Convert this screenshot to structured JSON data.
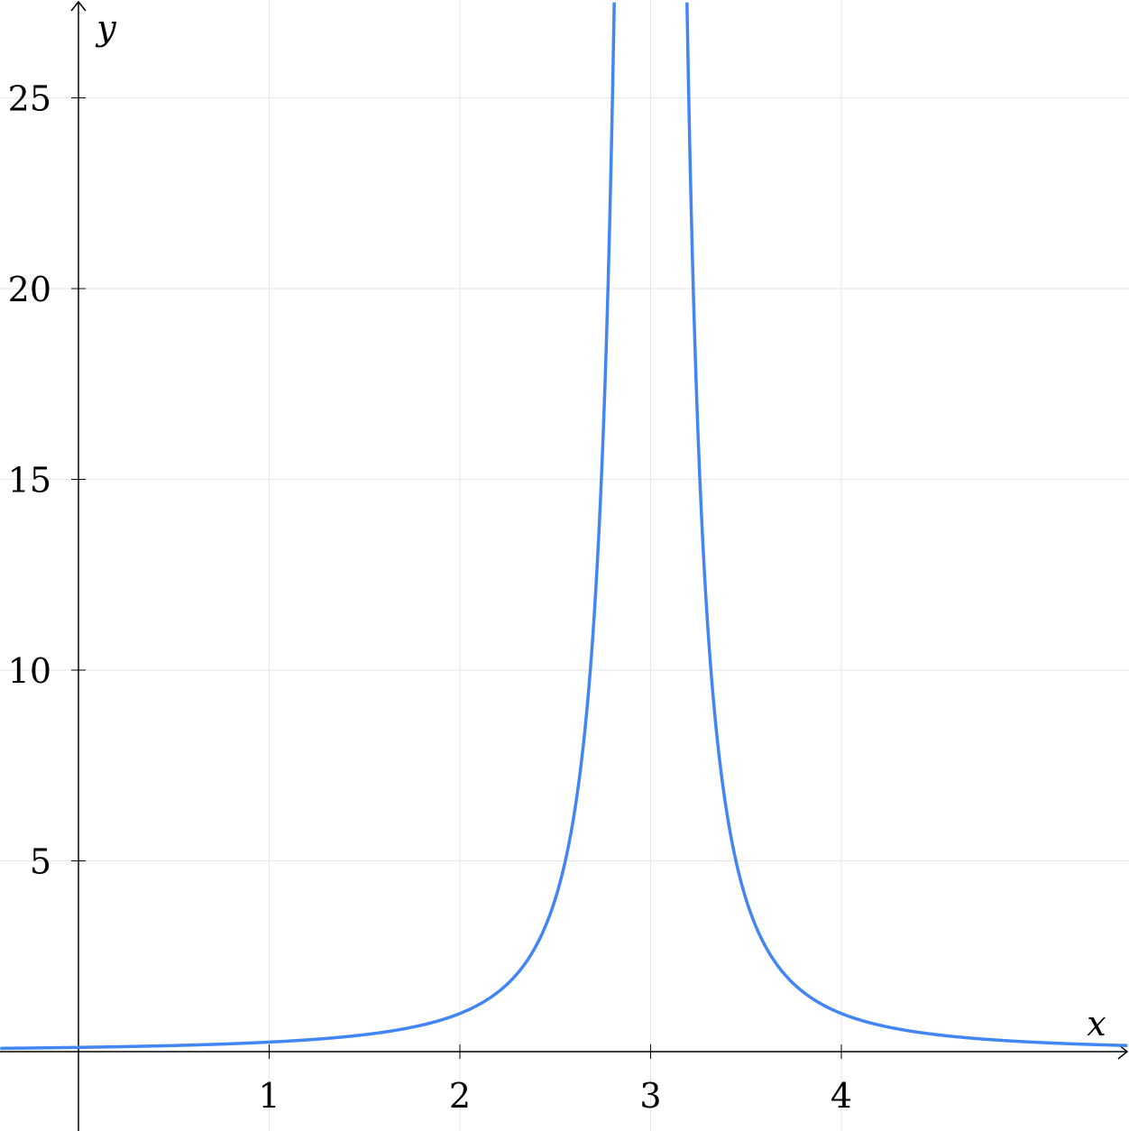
{
  "chart_data": {
    "type": "line",
    "title": "",
    "xlabel": "x",
    "ylabel": "y",
    "xlim": [
      -0.41,
      5.5
    ],
    "ylim": [
      -0.2,
      27.5
    ],
    "x_ticks": [
      1,
      2,
      3,
      4
    ],
    "y_ticks": [
      5,
      10,
      15,
      20,
      25
    ],
    "x_tick_labels": [
      "1",
      "2",
      "3",
      "4"
    ],
    "y_tick_labels": [
      "5",
      "10",
      "15",
      "20",
      "25"
    ],
    "grid": true,
    "legend": "none",
    "series": [
      {
        "function": "1/(x-3)^2",
        "asymptote_x": 3,
        "color": "#4285f4",
        "x": [
          -0.41,
          0,
          1,
          1.5,
          2,
          2.25,
          2.5,
          2.6,
          2.7,
          2.75,
          2.81,
          3.19,
          3.25,
          3.3,
          3.4,
          3.5,
          3.75,
          4,
          4.5,
          5,
          5.5
        ],
        "y": [
          0.086,
          0.111,
          0.25,
          0.444,
          1,
          1.778,
          4,
          6.25,
          11.11,
          16,
          27.7,
          27.7,
          16,
          11.11,
          6.25,
          4,
          1.778,
          1,
          0.444,
          0.25,
          0.16
        ]
      }
    ]
  },
  "colors": {
    "curve": "#4285f4",
    "grid": "#e6e6e6",
    "axis": "#000000"
  }
}
